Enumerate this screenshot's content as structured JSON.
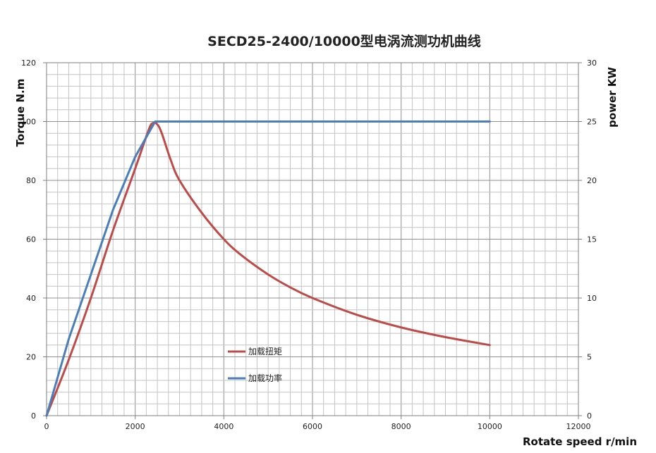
{
  "chart_data": {
    "type": "line",
    "title": "SECD25-2400/10000型电涡流测功机曲线",
    "xlabel": "Rotate speed r/min",
    "ylabel": "Torque N.m",
    "y2label": "power KW",
    "xlim": [
      0,
      12000
    ],
    "ylim": [
      0,
      120
    ],
    "y2lim": [
      0,
      30
    ],
    "x_ticks": [
      "0",
      "2000",
      "4000",
      "6000",
      "8000",
      "10000",
      "12000"
    ],
    "y_ticks": [
      "0",
      "20",
      "40",
      "60",
      "80",
      "100",
      "120"
    ],
    "y2_ticks": [
      "0",
      "5",
      "10",
      "15",
      "20",
      "25",
      "30"
    ],
    "grid": true,
    "legend_position": "center-bottom",
    "series": [
      {
        "name": "加载扭矩",
        "axis": "left",
        "color": "#be4b48",
        "points": [
          [
            0,
            0
          ],
          [
            500,
            19
          ],
          [
            1000,
            40
          ],
          [
            1500,
            63
          ],
          [
            2000,
            84
          ],
          [
            2300,
            97
          ],
          [
            2400,
            99.5
          ],
          [
            2500,
            99
          ],
          [
            2600,
            96
          ],
          [
            2800,
            87
          ],
          [
            3000,
            80
          ],
          [
            3500,
            69
          ],
          [
            4000,
            60
          ],
          [
            4400,
            54.5
          ],
          [
            5000,
            48
          ],
          [
            5500,
            43.6
          ],
          [
            6000,
            40
          ],
          [
            7000,
            34.3
          ],
          [
            8000,
            30
          ],
          [
            9000,
            26.7
          ],
          [
            10000,
            24
          ]
        ]
      },
      {
        "name": "加载功率",
        "axis": "right",
        "color": "#4a7ebb",
        "points": [
          [
            0,
            0
          ],
          [
            500,
            6.5
          ],
          [
            1000,
            12
          ],
          [
            1500,
            17.5
          ],
          [
            2000,
            22
          ],
          [
            2450,
            25
          ],
          [
            10000,
            25
          ]
        ]
      }
    ]
  }
}
